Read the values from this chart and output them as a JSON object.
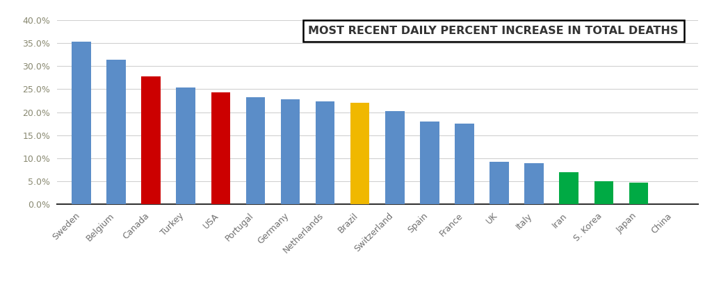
{
  "categories": [
    "Sweden",
    "Belgium",
    "Canada",
    "Turkey",
    "USA",
    "Portugal",
    "Germany",
    "Netherlands",
    "Brazil",
    "Switzerland",
    "Spain",
    "France",
    "UK",
    "Italy",
    "Iran",
    "S. Korea",
    "Japan",
    "China"
  ],
  "values": [
    0.353,
    0.314,
    0.278,
    0.254,
    0.243,
    0.232,
    0.228,
    0.224,
    0.22,
    0.203,
    0.18,
    0.175,
    0.093,
    0.09,
    0.07,
    0.05,
    0.047,
    0.0
  ],
  "colors": [
    "#5b8dc8",
    "#5b8dc8",
    "#cc0000",
    "#5b8dc8",
    "#cc0000",
    "#5b8dc8",
    "#5b8dc8",
    "#5b8dc8",
    "#f0b800",
    "#5b8dc8",
    "#5b8dc8",
    "#5b8dc8",
    "#5b8dc8",
    "#5b8dc8",
    "#00aa44",
    "#00aa44",
    "#00aa44",
    "#5b8dc8"
  ],
  "title": "MOST RECENT DAILY PERCENT INCREASE IN TOTAL DEATHS",
  "ylim": [
    0,
    0.4
  ],
  "yticks": [
    0.0,
    0.05,
    0.1,
    0.15,
    0.2,
    0.25,
    0.3,
    0.35,
    0.4
  ],
  "ytick_labels": [
    "0.0%",
    "5.0%",
    "10.0%",
    "15.0%",
    "20.0%",
    "25.0%",
    "30.0%",
    "35.0%",
    "40.0%"
  ],
  "background_color": "#ffffff",
  "plot_bg_color": "#ffffff",
  "grid_color": "#d0d0d0",
  "title_fontsize": 11.5,
  "tick_fontsize": 9,
  "bar_width": 0.55
}
